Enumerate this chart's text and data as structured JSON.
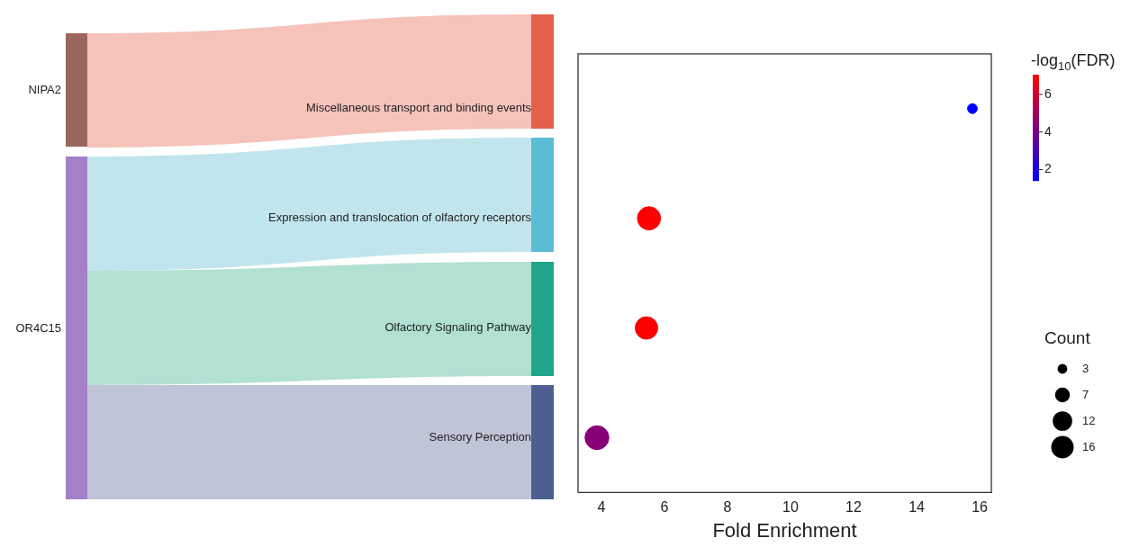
{
  "chart_data": [
    {
      "type": "other",
      "annotations": [
        "NIPA2",
        "OR4C15"
      ]
    },
    {
      "type": "bubble",
      "orientation": "horizontal",
      "categories": [
        "Miscellaneous transport and binding events",
        "Expression and translocation of olfactory receptors",
        "Olfactory Signaling Pathway",
        "Sensory Perception"
      ],
      "values": [
        15.77,
        5.51,
        5.43,
        3.86
      ],
      "sizes": [
        3,
        17,
        16,
        18
      ],
      "cvalues": [
        1.4,
        7.0,
        7.0,
        4.4
      ],
      "clim": [
        1.4,
        7.05
      ],
      "cticks": [
        2,
        4,
        6
      ],
      "clabel": "-log$_{10}$(FDR)",
      "size_legend": [
        3,
        7,
        12,
        16
      ],
      "legend_title": "Count",
      "xlabel": "Fold Enrichment",
      "xlim": [
        3.26,
        16.37
      ],
      "xticks": [
        4,
        6,
        8,
        10,
        12,
        14,
        16
      ]
    }
  ]
}
